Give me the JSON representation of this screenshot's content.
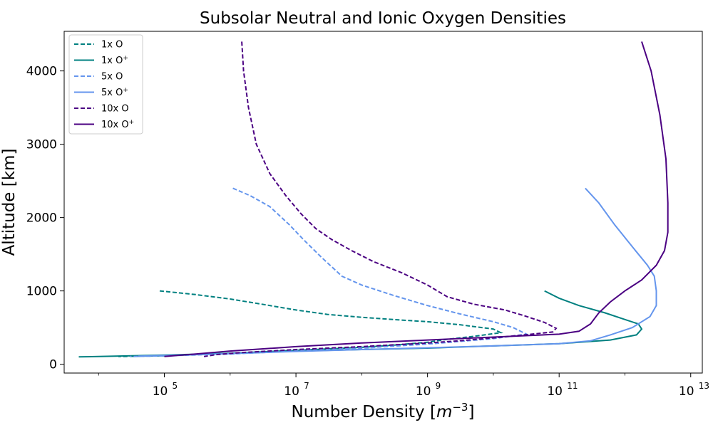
{
  "chart_data": {
    "type": "line",
    "title": "Subsolar Neutral and Ionic Oxygen Densities",
    "xlabel": "Number Density [m⁻³]",
    "ylabel": "Altitude [km]",
    "xscale": "log",
    "xlim": [
      3000.0,
      15000000000000.0
    ],
    "ylim": [
      -120,
      4540
    ],
    "xticks": [
      {
        "value": 100000.0,
        "label": "10",
        "exp": "5"
      },
      {
        "value": 10000000.0,
        "label": "10",
        "exp": "7"
      },
      {
        "value": 1000000000.0,
        "label": "10",
        "exp": "9"
      },
      {
        "value": 100000000000.0,
        "label": "10",
        "exp": "11"
      },
      {
        "value": 10000000000000.0,
        "label": "10",
        "exp": "13"
      }
    ],
    "yticks": [
      0,
      1000,
      2000,
      3000,
      4000
    ],
    "grid": false,
    "legend_position": "top-left",
    "series": [
      {
        "name": "1x O",
        "color": "#008080",
        "dash": "dashed",
        "points": [
          [
            85000.0,
            1000
          ],
          [
            300000.0,
            950
          ],
          [
            1000000.0,
            890
          ],
          [
            3000000.0,
            820
          ],
          [
            10000000.0,
            740
          ],
          [
            30000000.0,
            680
          ],
          [
            100000000.0,
            640
          ],
          [
            300000000.0,
            610
          ],
          [
            1000000000.0,
            580
          ],
          [
            3000000000.0,
            540
          ],
          [
            10000000000.0,
            480
          ],
          [
            13000000000.0,
            430
          ],
          [
            5000000000.0,
            380
          ],
          [
            2000000000.0,
            340
          ],
          [
            1000000000.0,
            300
          ],
          [
            300000000.0,
            260
          ],
          [
            100000000.0,
            230
          ],
          [
            10000000.0,
            190
          ],
          [
            1000000.0,
            150
          ],
          [
            100000.0,
            115
          ],
          [
            20000.0,
            105
          ]
        ]
      },
      {
        "name": "1x O⁺",
        "color": "#008080",
        "dash": "solid",
        "points": [
          [
            60000000000.0,
            1000
          ],
          [
            100000000000.0,
            900
          ],
          [
            200000000000.0,
            800
          ],
          [
            500000000000.0,
            700
          ],
          [
            1000000000000.0,
            610
          ],
          [
            1600000000000.0,
            550
          ],
          [
            1800000000000.0,
            480
          ],
          [
            1500000000000.0,
            400
          ],
          [
            600000000000.0,
            330
          ],
          [
            100000000000.0,
            280
          ],
          [
            10000000000.0,
            250
          ],
          [
            1000000000.0,
            220
          ],
          [
            100000000.0,
            200
          ],
          [
            10000000.0,
            180
          ],
          [
            1000000.0,
            150
          ],
          [
            100000.0,
            125
          ],
          [
            10000.0,
            105
          ],
          [
            5000.0,
            100
          ]
        ]
      },
      {
        "name": "5x O",
        "color": "#6495ed",
        "dash": "dashed",
        "points": [
          [
            1100000.0,
            2400
          ],
          [
            2000000.0,
            2300
          ],
          [
            4000000.0,
            2150
          ],
          [
            8000000.0,
            1900
          ],
          [
            13000000.0,
            1700
          ],
          [
            25000000.0,
            1450
          ],
          [
            50000000.0,
            1200
          ],
          [
            100000000.0,
            1080
          ],
          [
            300000000.0,
            940
          ],
          [
            1000000000.0,
            800
          ],
          [
            3000000000.0,
            690
          ],
          [
            10000000000.0,
            580
          ],
          [
            20000000000.0,
            500
          ],
          [
            32000000000.0,
            410
          ],
          [
            10000000000.0,
            350
          ],
          [
            3000000000.0,
            310
          ],
          [
            1000000000.0,
            275
          ],
          [
            100000000.0,
            220
          ],
          [
            10000000.0,
            180
          ],
          [
            1000000.0,
            140
          ],
          [
            100000.0,
            115
          ],
          [
            30000.0,
            105
          ]
        ]
      },
      {
        "name": "5x O⁺",
        "color": "#6495ed",
        "dash": "solid",
        "points": [
          [
            250000000000.0,
            2400
          ],
          [
            400000000000.0,
            2200
          ],
          [
            700000000000.0,
            1900
          ],
          [
            1300000000000.0,
            1600
          ],
          [
            2200000000000.0,
            1350
          ],
          [
            2800000000000.0,
            1200
          ],
          [
            3000000000000.0,
            1000
          ],
          [
            3000000000000.0,
            800
          ],
          [
            2400000000000.0,
            650
          ],
          [
            1300000000000.0,
            500
          ],
          [
            600000000000.0,
            400
          ],
          [
            300000000000.0,
            320
          ],
          [
            100000000000.0,
            280
          ],
          [
            10000000000.0,
            250
          ],
          [
            1000000000.0,
            225
          ],
          [
            100000000.0,
            200
          ],
          [
            10000000.0,
            175
          ],
          [
            1000000.0,
            145
          ],
          [
            100000.0,
            120
          ],
          [
            40000.0,
            110
          ]
        ]
      },
      {
        "name": "10x O",
        "color": "#4b0082",
        "dash": "dashed",
        "points": [
          [
            1500000.0,
            4400
          ],
          [
            1600000.0,
            4000
          ],
          [
            1900000.0,
            3500
          ],
          [
            2500000.0,
            3000
          ],
          [
            4000000.0,
            2600
          ],
          [
            7000000.0,
            2300
          ],
          [
            12000000.0,
            2050
          ],
          [
            20000000.0,
            1850
          ],
          [
            35000000.0,
            1700
          ],
          [
            70000000.0,
            1550
          ],
          [
            150000000.0,
            1400
          ],
          [
            400000000.0,
            1250
          ],
          [
            1000000000.0,
            1080
          ],
          [
            2000000000.0,
            920
          ],
          [
            5000000000.0,
            820
          ],
          [
            15000000000.0,
            740
          ],
          [
            30000000000.0,
            660
          ],
          [
            60000000000.0,
            570
          ],
          [
            90000000000.0,
            490
          ],
          [
            80000000000.0,
            440
          ],
          [
            30000000000.0,
            400
          ],
          [
            10000000000.0,
            360
          ],
          [
            3000000000.0,
            320
          ],
          [
            1000000000.0,
            290
          ],
          [
            100000000.0,
            240
          ],
          [
            10000000.0,
            200
          ],
          [
            1500000.0,
            160
          ],
          [
            600000.0,
            130
          ],
          [
            400000.0,
            105
          ]
        ]
      },
      {
        "name": "10x O⁺",
        "color": "#4b0082",
        "dash": "solid",
        "points": [
          [
            1800000000000.0,
            4400
          ],
          [
            2500000000000.0,
            4000
          ],
          [
            3400000000000.0,
            3400
          ],
          [
            4200000000000.0,
            2800
          ],
          [
            4500000000000.0,
            2200
          ],
          [
            4500000000000.0,
            1800
          ],
          [
            4000000000000.0,
            1550
          ],
          [
            3000000000000.0,
            1350
          ],
          [
            1800000000000.0,
            1150
          ],
          [
            1000000000000.0,
            1000
          ],
          [
            600000000000.0,
            850
          ],
          [
            400000000000.0,
            700
          ],
          [
            300000000000.0,
            550
          ],
          [
            200000000000.0,
            450
          ],
          [
            100000000000.0,
            410
          ],
          [
            10000000000.0,
            370
          ],
          [
            1000000000.0,
            330
          ],
          [
            100000000.0,
            290
          ],
          [
            10000000.0,
            240
          ],
          [
            1000000.0,
            180
          ],
          [
            300000.0,
            140
          ],
          [
            100000.0,
            105
          ]
        ]
      }
    ]
  }
}
